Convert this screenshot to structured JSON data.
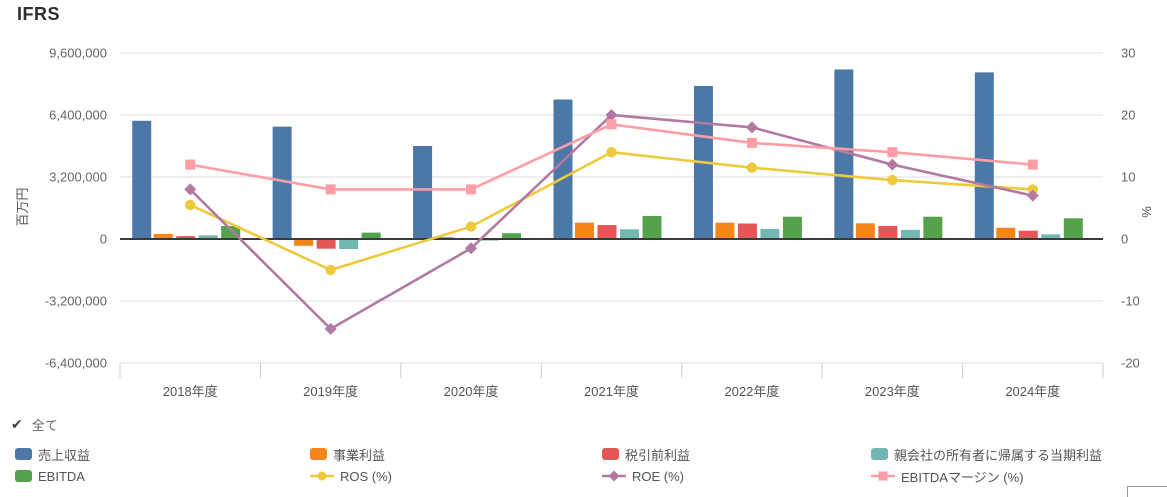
{
  "title": "IFRS",
  "legend": {
    "all_label": "全て"
  },
  "chart_data": {
    "type": "combo-bar-line",
    "title": "IFRS",
    "categories": [
      "2018年度",
      "2019年度",
      "2020年度",
      "2021年度",
      "2022年度",
      "2023年度",
      "2024年度"
    ],
    "left_axis": {
      "label": "百万円",
      "min": -6400000,
      "max": 9600000,
      "tick_step": 3200000,
      "tick_values": [
        9600000,
        6400000,
        3200000,
        0,
        -3200000,
        -6400000
      ],
      "tick_labels": [
        "9,600,000",
        "6,400,000",
        "3,200,000",
        "0",
        "-3,200,000",
        "-6,400,000"
      ]
    },
    "right_axis": {
      "label": "%",
      "min": -20,
      "max": 30,
      "tick_step": 10,
      "tick_values": [
        30,
        20,
        10,
        0,
        -10,
        -20
      ],
      "tick_labels": [
        "30",
        "20",
        "10",
        "0",
        "-10",
        "-20"
      ]
    },
    "grid": true,
    "legend_position": "bottom",
    "series": [
      {
        "name": "売上収益",
        "type": "bar",
        "axis": "left",
        "color": "#4C78A8",
        "values": [
          6100000,
          5800000,
          4800000,
          7200000,
          7900000,
          8750000,
          8600000
        ]
      },
      {
        "name": "事業利益",
        "type": "bar",
        "axis": "left",
        "color": "#F58518",
        "values": [
          260000,
          -350000,
          100000,
          840000,
          840000,
          810000,
          580000
        ]
      },
      {
        "name": "税引前利益",
        "type": "bar",
        "axis": "left",
        "color": "#E45756",
        "values": [
          150000,
          -500000,
          10000,
          720000,
          800000,
          670000,
          430000
        ]
      },
      {
        "name": "親会社の所有者に帰属する当期利益",
        "type": "bar",
        "axis": "left",
        "color": "#72B7B2",
        "values": [
          190000,
          -520000,
          -80000,
          500000,
          520000,
          470000,
          240000
        ]
      },
      {
        "name": "EBITDA",
        "type": "bar",
        "axis": "left",
        "color": "#54A24B",
        "values": [
          670000,
          330000,
          300000,
          1190000,
          1150000,
          1150000,
          1070000
        ]
      },
      {
        "name": "ROS (%)",
        "type": "line",
        "marker": "circle",
        "axis": "right",
        "color": "#EECA3B",
        "values": [
          5.5,
          -5,
          2,
          14,
          11.5,
          9.5,
          8
        ]
      },
      {
        "name": "ROE (%)",
        "type": "line",
        "marker": "diamond",
        "axis": "right",
        "color": "#B279A2",
        "values": [
          8,
          -14.5,
          -1.5,
          20,
          18,
          12,
          7
        ]
      },
      {
        "name": "EBITDAマージン (%)",
        "type": "line",
        "marker": "square",
        "axis": "right",
        "color": "#FF9DA6",
        "values": [
          12,
          8,
          8,
          18.5,
          15.5,
          14,
          12
        ]
      }
    ],
    "colors": {
      "grid": "#DDDDDD",
      "zero_line": "#3A3A3A",
      "tick_text": "#666666",
      "axis_title_text": "#555555",
      "category_tick": "#CCCCCC"
    }
  }
}
